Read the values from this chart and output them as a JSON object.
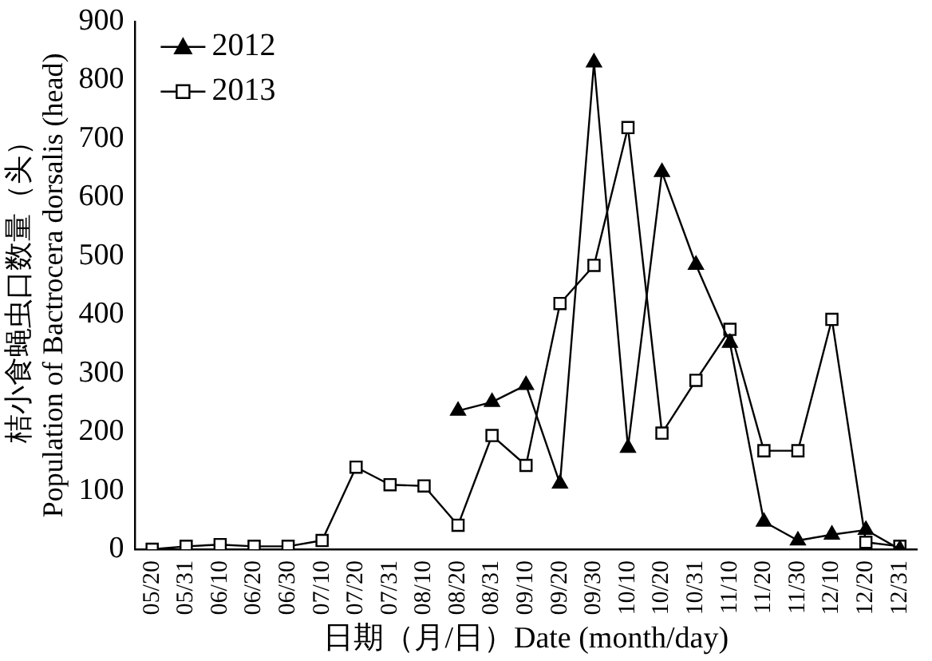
{
  "chart_data": {
    "type": "line",
    "xlabel": "日期（月/日）Date (month/day)",
    "ylabel": "桔小食蝇虫口数量（头）\nPopulation of Bactrocera dorsalis (head)",
    "categories": [
      "05/20",
      "05/31",
      "06/10",
      "06/20",
      "06/30",
      "07/10",
      "07/20",
      "07/31",
      "08/10",
      "08/20",
      "08/31",
      "09/10",
      "09/20",
      "09/30",
      "10/10",
      "10/20",
      "10/31",
      "11/10",
      "11/20",
      "11/30",
      "12/10",
      "12/20",
      "12/31"
    ],
    "series": [
      {
        "name": "2012",
        "color": "#000000",
        "marker": "triangle",
        "values": [
          null,
          null,
          null,
          null,
          null,
          null,
          null,
          null,
          null,
          236,
          251,
          280,
          112,
          830,
          173,
          643,
          485,
          352,
          47,
          15,
          25,
          33,
          0
        ]
      },
      {
        "name": "2013",
        "color": "#000000",
        "marker": "square",
        "values": [
          0,
          5,
          8,
          5,
          5,
          15,
          140,
          110,
          108,
          41,
          194,
          143,
          419,
          484,
          719,
          198,
          288,
          375,
          168,
          168,
          392,
          12,
          5
        ]
      }
    ],
    "ylim": [
      0,
      900
    ],
    "yticks": [
      0,
      100,
      200,
      300,
      400,
      500,
      600,
      700,
      800,
      900
    ],
    "grid": false,
    "legend": "top left",
    "line_style": "solid"
  }
}
